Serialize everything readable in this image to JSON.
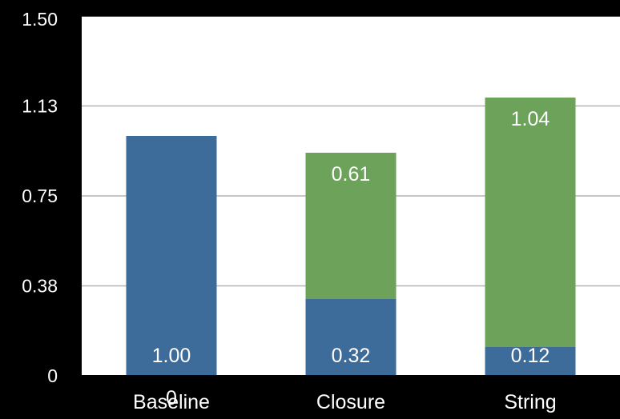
{
  "chart_data": {
    "type": "bar",
    "stacked": true,
    "categories": [
      "Baseline",
      "Closure",
      "String"
    ],
    "series": [
      {
        "color": "#3d6b9a",
        "values": [
          1.0,
          0.32,
          0.12
        ],
        "labels": [
          "1.00",
          "0.32",
          "0.12"
        ]
      },
      {
        "color": "#6ca25a",
        "values": [
          0,
          0.61,
          1.04
        ],
        "labels": [
          "",
          "0.61",
          "1.04"
        ]
      }
    ],
    "stray_label": "0",
    "y_ticks": [
      "0",
      "0.38",
      "0.75",
      "1.13",
      "1.50"
    ],
    "y_tick_values": [
      0,
      0.375,
      0.75,
      1.125,
      1.5
    ],
    "ylim": [
      0,
      1.5
    ],
    "grid": true,
    "legend": "none",
    "colors": {
      "background": "#000000",
      "plot_background": "#ffffff",
      "gridline": "#b3b3b3",
      "text": "#ffffff"
    }
  }
}
